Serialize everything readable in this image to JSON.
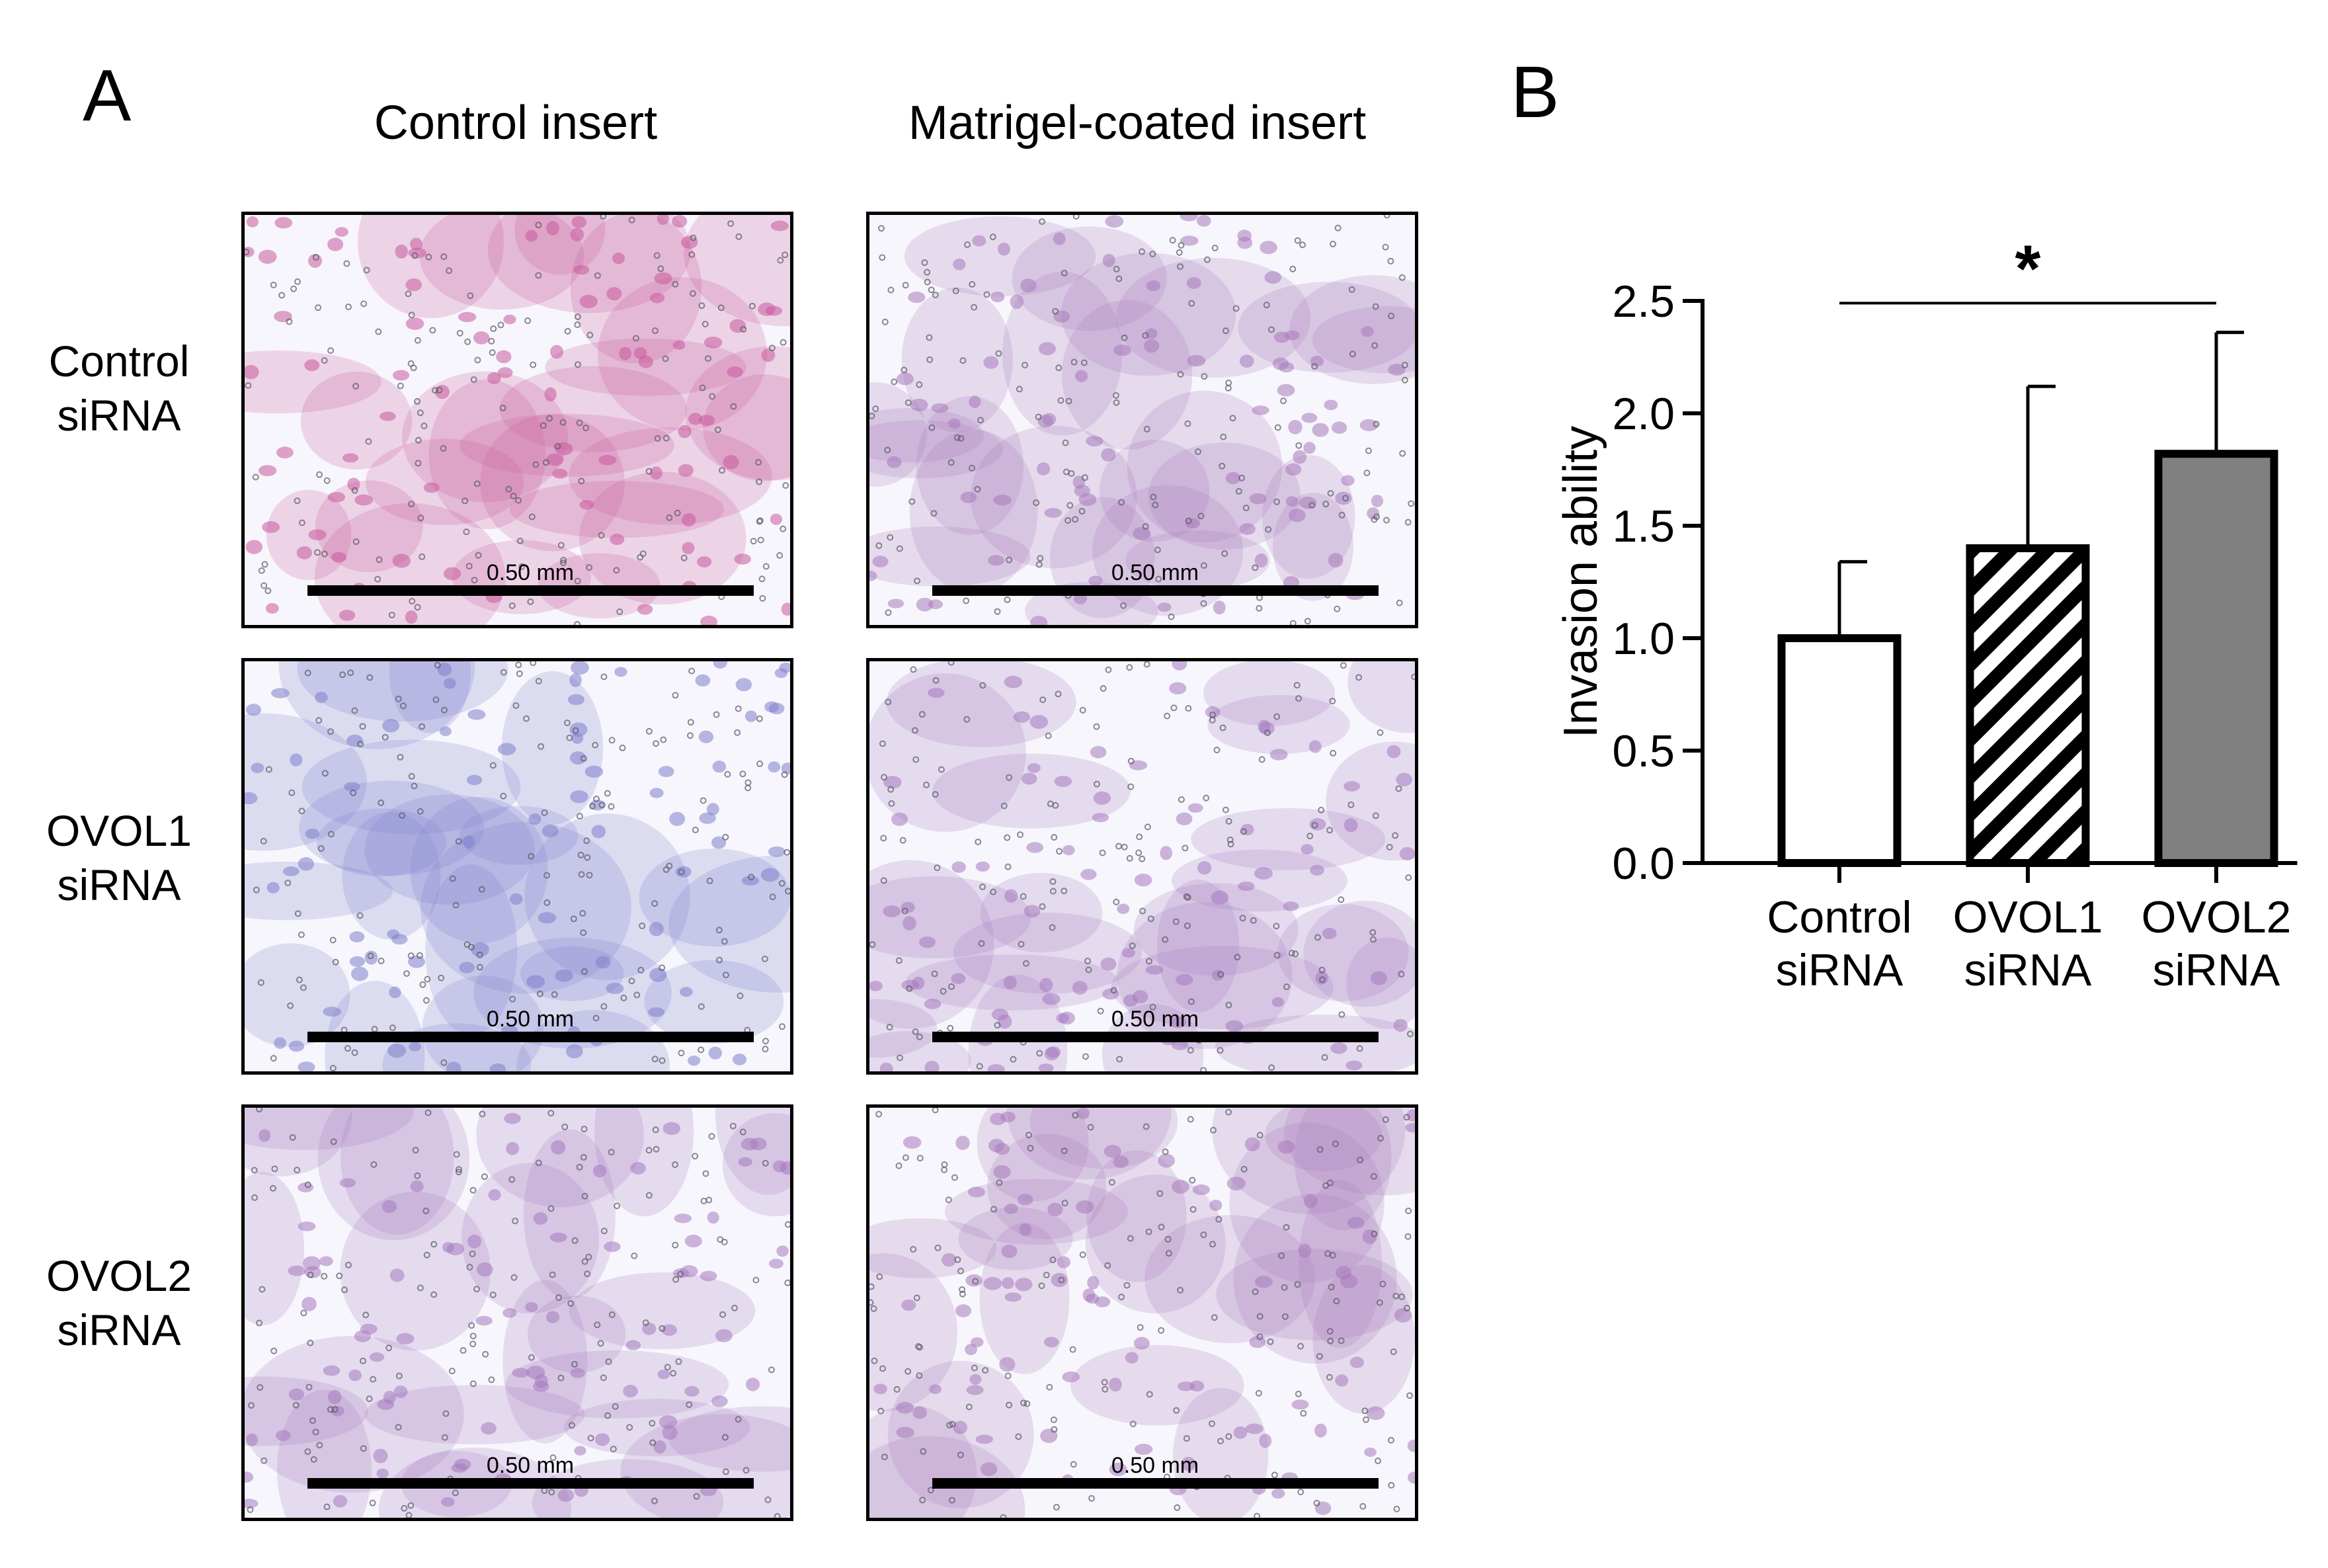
{
  "panelA": {
    "letter": "A",
    "columns": [
      "Control insert",
      "Matrigel-coated insert"
    ],
    "rows": [
      {
        "line1": "Control",
        "line2": "siRNA"
      },
      {
        "line1": "OVOL1",
        "line2": "siRNA"
      },
      {
        "line1": "OVOL2",
        "line2": "siRNA"
      }
    ],
    "scale_bar_label": "0.50 mm",
    "stain_colors": {
      "control_control": "#c85a9c",
      "control_matrigel": "#a77ab9",
      "ovol1": "#7f7fcc",
      "ovol2": "#a57ac0"
    }
  },
  "panelB": {
    "letter": "B"
  },
  "chart_data": {
    "type": "bar",
    "categories": [
      {
        "line1": "Control",
        "line2": "siRNA"
      },
      {
        "line1": "OVOL1",
        "line2": "siRNA"
      },
      {
        "line1": "OVOL2",
        "line2": "siRNA"
      }
    ],
    "values": [
      1.0,
      1.4,
      1.82
    ],
    "errors": [
      0.34,
      0.72,
      0.54
    ],
    "fills": [
      "white",
      "hatched",
      "#808080"
    ],
    "ylabel": "Invasion ability",
    "ylim": [
      0,
      2.5
    ],
    "yticks": [
      "0.0",
      "0.5",
      "1.0",
      "1.5",
      "2.0",
      "2.5"
    ],
    "significance": {
      "from": 0,
      "to": 2,
      "label": "*"
    }
  }
}
